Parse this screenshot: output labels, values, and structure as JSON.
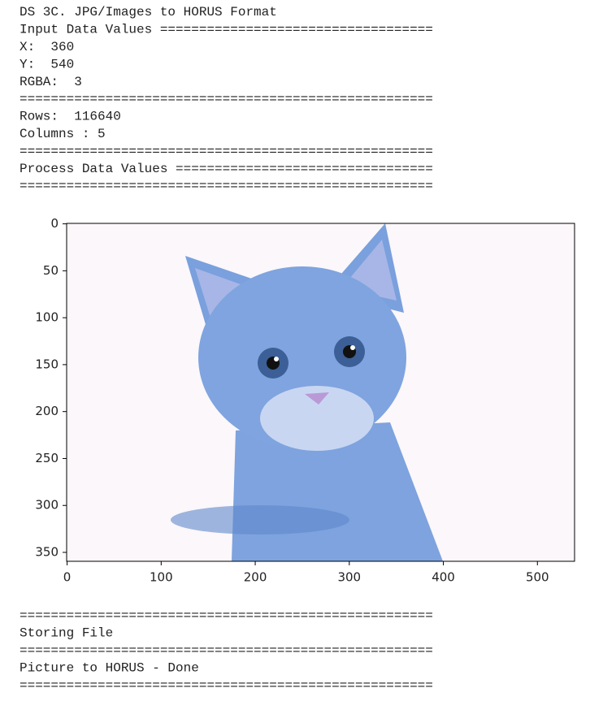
{
  "console_top": [
    "DS 3C. JPG/Images to HORUS Format",
    "Input Data Values ===================================",
    "X:  360",
    "Y:  540",
    "RGBA:  3",
    "=====================================================",
    "Rows:  116640",
    "Columns : 5",
    "=====================================================",
    "Process Data Values =================================",
    "====================================================="
  ],
  "chart_data": {
    "type": "image",
    "xlim": [
      -0.5,
      539.5
    ],
    "ylim": [
      359.5,
      -0.5
    ],
    "xticks": [
      0,
      100,
      200,
      300,
      400,
      500
    ],
    "yticks": [
      0,
      50,
      100,
      150,
      200,
      250,
      300,
      350
    ]
  },
  "console_bottom": [
    "=====================================================",
    "Storing File",
    "=====================================================",
    "Picture to HORUS - Done",
    "====================================================="
  ]
}
